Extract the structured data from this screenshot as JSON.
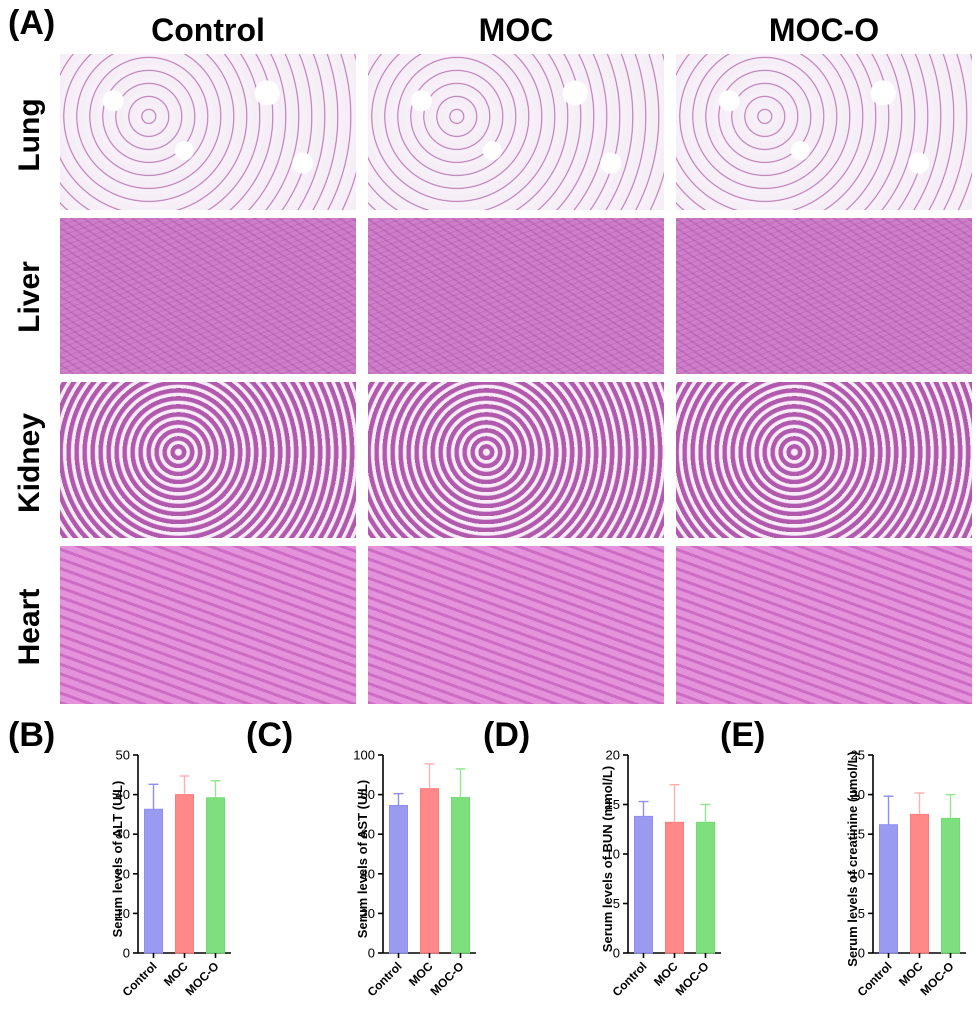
{
  "panels": {
    "a": "(A)",
    "b": "(B)",
    "c": "(C)",
    "d": "(D)",
    "e": "(E)"
  },
  "columns": [
    "Control",
    "MOC",
    "MOC-O"
  ],
  "rows": [
    "Lung",
    "Liver",
    "Kidney",
    "Heart"
  ],
  "colors": {
    "control": "#8f8ff0",
    "moc": "#ff7b7b",
    "moco": "#6fdc6f",
    "control_error": "#8f8ff0",
    "moc_error": "#ffb0b0",
    "moco_error": "#8fe88f"
  },
  "chart_data": [
    {
      "type": "bar",
      "categories": [
        "Control",
        "MOC",
        "MOC-O"
      ],
      "values": [
        36.3,
        40.0,
        39.2
      ],
      "errors": [
        6.3,
        4.7,
        4.3
      ],
      "ylabel": "Serum levels of ALT (U/L)",
      "ylim": [
        0,
        50
      ],
      "yticks": [
        0,
        10,
        20,
        30,
        40,
        50
      ]
    },
    {
      "type": "bar",
      "categories": [
        "Control",
        "MOC",
        "MOC-O"
      ],
      "values": [
        74.5,
        83.0,
        78.5
      ],
      "errors": [
        6.0,
        12.5,
        14.5
      ],
      "ylabel": "Serum levels of AST (U/L)",
      "ylim": [
        0,
        100
      ],
      "yticks": [
        0,
        20,
        40,
        60,
        80,
        100
      ]
    },
    {
      "type": "bar",
      "categories": [
        "Control",
        "MOC",
        "MOC-O"
      ],
      "values": [
        13.8,
        13.2,
        13.2
      ],
      "errors": [
        1.5,
        3.8,
        1.8
      ],
      "ylabel": "Serum levels of BUN (mmol/L)",
      "ylim": [
        0,
        20
      ],
      "yticks": [
        0,
        5,
        10,
        15,
        20
      ]
    },
    {
      "type": "bar",
      "categories": [
        "Control",
        "MOC",
        "MOC-O"
      ],
      "values": [
        16.2,
        17.5,
        17.0
      ],
      "errors": [
        3.6,
        2.7,
        3.0
      ],
      "ylabel": "Serum levels of creatinine (µmol/L)",
      "ylim": [
        0,
        25
      ],
      "yticks": [
        0,
        5,
        10,
        15,
        20,
        25
      ]
    }
  ]
}
